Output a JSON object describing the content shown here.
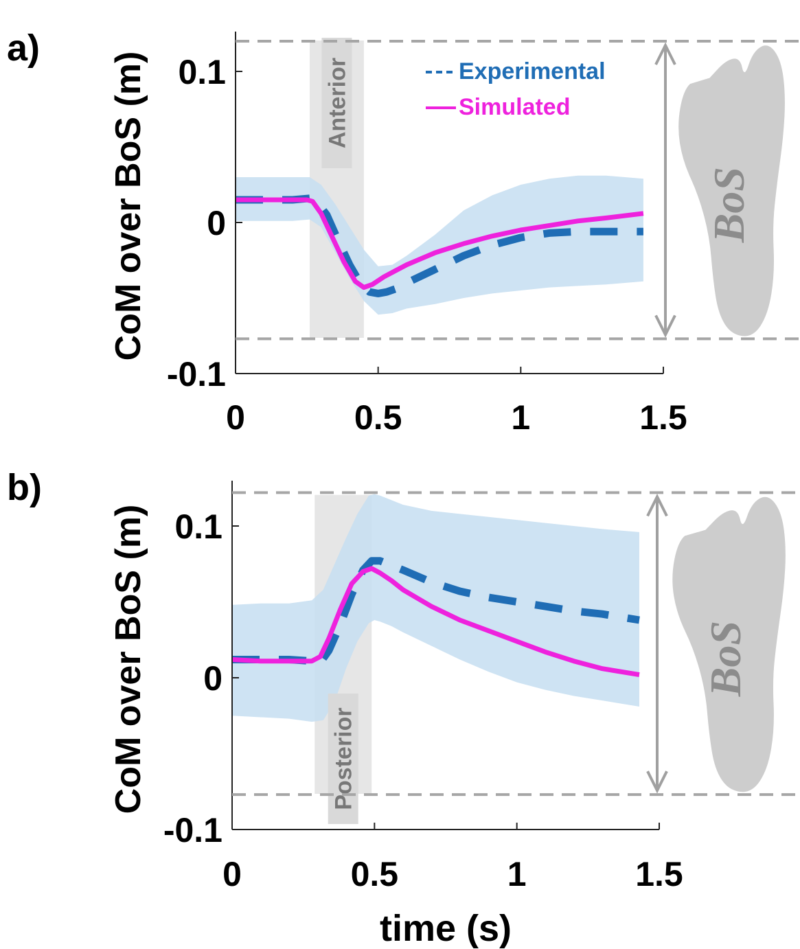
{
  "colors": {
    "experimental": "#1f6db5",
    "simulated": "#ee22dd",
    "band": "#c6def1",
    "phase": "#e6e6e6",
    "bos_dash": "#a6a6a6",
    "foot": "#cdcdcd",
    "arrow": "#a0a0a0"
  },
  "chart_data": [
    {
      "panel_label": "a)",
      "type": "line",
      "xlabel": "",
      "ylabel": "CoM over BoS (m)",
      "xlim": [
        0,
        1.5
      ],
      "ylim": [
        -0.1,
        0.125
      ],
      "xticks": [
        "0",
        "0.5",
        "1",
        "1.5"
      ],
      "yticks": [
        "-0.1",
        "0",
        "0.1"
      ],
      "phase_label": "Anterior",
      "phase_range": [
        0.26,
        0.45
      ],
      "bos_limits": [
        -0.077,
        0.12
      ],
      "bos_text": "BoS",
      "legend": {
        "experimental": "Experimental",
        "simulated": "Simulated"
      },
      "series": [
        {
          "name": "Experimental",
          "style": "dashed",
          "x": [
            0,
            0.1,
            0.2,
            0.26,
            0.28,
            0.32,
            0.36,
            0.4,
            0.44,
            0.47,
            0.5,
            0.53,
            0.56,
            0.6,
            0.7,
            0.8,
            0.9,
            1.0,
            1.1,
            1.2,
            1.3,
            1.43
          ],
          "y": [
            0.015,
            0.015,
            0.015,
            0.016,
            0.015,
            0.005,
            -0.012,
            -0.028,
            -0.041,
            -0.046,
            -0.047,
            -0.046,
            -0.044,
            -0.04,
            -0.031,
            -0.022,
            -0.015,
            -0.01,
            -0.007,
            -0.006,
            -0.006,
            -0.006
          ]
        },
        {
          "name": "Simulated",
          "style": "solid",
          "x": [
            0,
            0.1,
            0.2,
            0.25,
            0.27,
            0.3,
            0.34,
            0.38,
            0.42,
            0.45,
            0.48,
            0.52,
            0.56,
            0.6,
            0.7,
            0.8,
            0.9,
            1.0,
            1.1,
            1.2,
            1.3,
            1.43
          ],
          "y": [
            0.015,
            0.015,
            0.015,
            0.015,
            0.014,
            0.006,
            -0.01,
            -0.026,
            -0.039,
            -0.043,
            -0.041,
            -0.036,
            -0.032,
            -0.028,
            -0.02,
            -0.014,
            -0.009,
            -0.005,
            -0.002,
            0.001,
            0.003,
            0.006
          ]
        }
      ],
      "band": {
        "x": [
          0,
          0.1,
          0.2,
          0.26,
          0.3,
          0.35,
          0.4,
          0.45,
          0.5,
          0.55,
          0.6,
          0.7,
          0.8,
          0.9,
          1.0,
          1.1,
          1.2,
          1.3,
          1.43
        ],
        "upper": [
          0.03,
          0.03,
          0.03,
          0.03,
          0.025,
          0.012,
          -0.003,
          -0.018,
          -0.029,
          -0.028,
          -0.022,
          -0.008,
          0.008,
          0.018,
          0.025,
          0.029,
          0.031,
          0.031,
          0.029
        ],
        "lower": [
          0.001,
          0.001,
          0.001,
          0.002,
          -0.003,
          -0.02,
          -0.037,
          -0.052,
          -0.061,
          -0.06,
          -0.057,
          -0.054,
          -0.05,
          -0.047,
          -0.045,
          -0.043,
          -0.042,
          -0.041,
          -0.039
        ]
      }
    },
    {
      "panel_label": "b)",
      "type": "line",
      "xlabel": "time (s)",
      "ylabel": "CoM over BoS (m)",
      "xlim": [
        0,
        1.5
      ],
      "ylim": [
        -0.1,
        0.125
      ],
      "xticks": [
        "0",
        "0.5",
        "1",
        "1.5"
      ],
      "yticks": [
        "-0.1",
        "0",
        "0.1"
      ],
      "phase_label": "Posterior",
      "phase_range": [
        0.29,
        0.49
      ],
      "bos_limits": [
        -0.077,
        0.122
      ],
      "bos_text": "BoS",
      "series": [
        {
          "name": "Experimental",
          "style": "dashed",
          "x": [
            0,
            0.1,
            0.2,
            0.28,
            0.31,
            0.34,
            0.38,
            0.42,
            0.46,
            0.49,
            0.52,
            0.56,
            0.6,
            0.7,
            0.8,
            0.9,
            1.0,
            1.1,
            1.2,
            1.3,
            1.43
          ],
          "y": [
            0.012,
            0.012,
            0.012,
            0.011,
            0.01,
            0.018,
            0.035,
            0.055,
            0.071,
            0.077,
            0.077,
            0.074,
            0.071,
            0.063,
            0.057,
            0.053,
            0.05,
            0.047,
            0.044,
            0.042,
            0.038
          ]
        },
        {
          "name": "Simulated",
          "style": "solid",
          "x": [
            0,
            0.1,
            0.2,
            0.28,
            0.31,
            0.34,
            0.38,
            0.42,
            0.46,
            0.49,
            0.52,
            0.56,
            0.6,
            0.7,
            0.8,
            0.9,
            1.0,
            1.1,
            1.2,
            1.3,
            1.43
          ],
          "y": [
            0.012,
            0.011,
            0.011,
            0.011,
            0.014,
            0.026,
            0.045,
            0.062,
            0.07,
            0.072,
            0.069,
            0.064,
            0.058,
            0.047,
            0.038,
            0.031,
            0.024,
            0.017,
            0.011,
            0.006,
            0.002
          ]
        }
      ],
      "band": {
        "x": [
          0,
          0.1,
          0.2,
          0.28,
          0.32,
          0.36,
          0.4,
          0.44,
          0.48,
          0.5,
          0.52,
          0.56,
          0.6,
          0.7,
          0.8,
          0.9,
          1.0,
          1.1,
          1.2,
          1.3,
          1.43
        ],
        "upper": [
          0.048,
          0.049,
          0.049,
          0.051,
          0.058,
          0.075,
          0.092,
          0.108,
          0.12,
          0.121,
          0.12,
          0.117,
          0.114,
          0.11,
          0.108,
          0.106,
          0.104,
          0.102,
          0.1,
          0.098,
          0.096
        ],
        "lower": [
          -0.025,
          -0.026,
          -0.027,
          -0.029,
          -0.028,
          -0.016,
          0.006,
          0.024,
          0.036,
          0.038,
          0.037,
          0.034,
          0.03,
          0.021,
          0.012,
          0.004,
          -0.003,
          -0.008,
          -0.012,
          -0.015,
          -0.019
        ]
      }
    }
  ]
}
